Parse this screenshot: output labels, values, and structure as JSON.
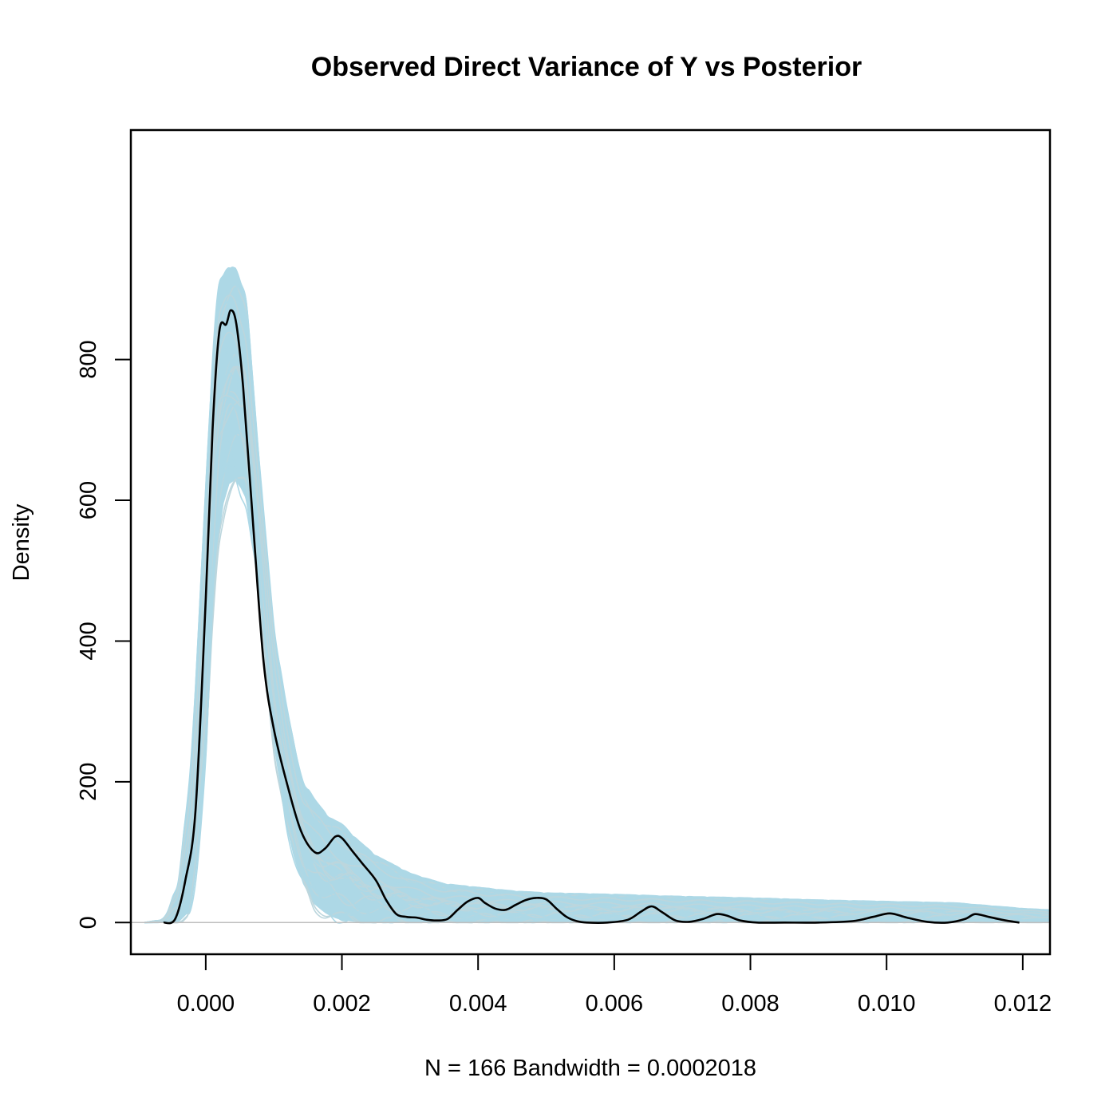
{
  "chart_data": {
    "type": "line",
    "title": "Observed Direct Variance of Y vs Posterior",
    "xlabel": "N = 166   Bandwidth = 0.0002018",
    "ylabel": "Density",
    "xlim": [
      -0.0011,
      0.0124
    ],
    "ylim": [
      -45,
      1126
    ],
    "x_ticks": [
      {
        "value": 0.0,
        "label": "0.000"
      },
      {
        "value": 0.002,
        "label": "0.002"
      },
      {
        "value": 0.004,
        "label": "0.004"
      },
      {
        "value": 0.006,
        "label": "0.006"
      },
      {
        "value": 0.008,
        "label": "0.008"
      },
      {
        "value": 0.01,
        "label": "0.010"
      },
      {
        "value": 0.012,
        "label": "0.012"
      }
    ],
    "y_ticks": [
      {
        "value": 0,
        "label": "0"
      },
      {
        "value": 200,
        "label": "200"
      },
      {
        "value": 400,
        "label": "400"
      },
      {
        "value": 600,
        "label": "600"
      },
      {
        "value": 800,
        "label": "800"
      }
    ],
    "colors": {
      "observed": "#000000",
      "posterior": "#add8e6",
      "zero_line": "#bebebe"
    },
    "series": [
      {
        "name": "observed",
        "kind": "density",
        "x": [
          -0.00062,
          -0.00045,
          -0.0003,
          -0.00015,
          0.0,
          0.0001,
          0.0002,
          0.0003,
          0.00037,
          0.00045,
          0.00055,
          0.0007,
          0.00085,
          0.001,
          0.0012,
          0.0014,
          0.0016,
          0.00175,
          0.0019,
          0.002,
          0.00215,
          0.0023,
          0.0025,
          0.00265,
          0.0028,
          0.00295,
          0.0031,
          0.00325,
          0.0034,
          0.00355,
          0.0037,
          0.00385,
          0.004,
          0.0041,
          0.00425,
          0.0044,
          0.00455,
          0.0047,
          0.00485,
          0.005,
          0.00515,
          0.0053,
          0.00545,
          0.0056,
          0.0059,
          0.0062,
          0.0064,
          0.00655,
          0.0067,
          0.0069,
          0.0071,
          0.0073,
          0.0075,
          0.00765,
          0.00785,
          0.0081,
          0.0085,
          0.009,
          0.0095,
          0.0098,
          0.01005,
          0.0103,
          0.0106,
          0.0109,
          0.01115,
          0.0113,
          0.0115,
          0.01175,
          0.01195
        ],
        "y": [
          0,
          5,
          60,
          160,
          460,
          700,
          840,
          850,
          870,
          850,
          760,
          560,
          370,
          275,
          195,
          130,
          100,
          105,
          122,
          120,
          102,
          84,
          60,
          32,
          12,
          8,
          7,
          4,
          3,
          5,
          18,
          30,
          35,
          28,
          20,
          18,
          25,
          32,
          35,
          33,
          20,
          8,
          2,
          0,
          0,
          4,
          16,
          23,
          15,
          3,
          1,
          5,
          12,
          10,
          3,
          0,
          0,
          0,
          2,
          8,
          13,
          7,
          1,
          0,
          5,
          12,
          8,
          3,
          0
        ]
      },
      {
        "name": "posterior",
        "kind": "replicated-density-band",
        "x": [
          -0.0009,
          -0.0006,
          -0.0004,
          -0.0002,
          0.0,
          0.00015,
          0.0003,
          0.00045,
          0.0006,
          0.0008,
          0.001,
          0.0012,
          0.0014,
          0.0016,
          0.0018,
          0.002,
          0.0022,
          0.0025,
          0.003,
          0.0035,
          0.004,
          0.0045,
          0.005,
          0.006,
          0.007,
          0.008,
          0.009,
          0.01,
          0.011,
          0.012,
          0.0124
        ],
        "upper": [
          0,
          5,
          60,
          240,
          620,
          890,
          930,
          930,
          880,
          640,
          420,
          300,
          205,
          175,
          150,
          140,
          120,
          95,
          70,
          55,
          50,
          45,
          42,
          40,
          37,
          35,
          32,
          30,
          28,
          20,
          18
        ],
        "lower": [
          0,
          0,
          0,
          20,
          220,
          520,
          620,
          630,
          600,
          450,
          250,
          130,
          60,
          25,
          10,
          3,
          1,
          0,
          0,
          0,
          0,
          0,
          0,
          0,
          0,
          0,
          0,
          0,
          0,
          0,
          0
        ]
      }
    ]
  }
}
